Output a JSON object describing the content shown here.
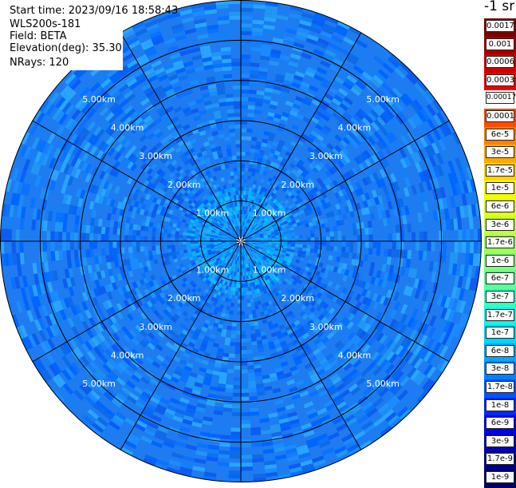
{
  "header": {
    "start_time": "Start time: 2023/09/16 18:58:43",
    "instrument": "WLS200s-181",
    "field": "Field: BETA",
    "elevation": "Elevation(deg): 35.30",
    "nrays": "NRays: 120"
  },
  "colorbar": {
    "unit": "-1 sr",
    "bands": [
      {
        "label": "0.0017",
        "color": "#7a0000"
      },
      {
        "label": "0.001",
        "color": "#a30000"
      },
      {
        "label": "0.0006",
        "color": "#cc0000"
      },
      {
        "label": "0.0003",
        "color": "#f00000"
      },
      {
        "label": "0.00017",
        "color": "#ffffff"
      },
      {
        "label": "0.0001",
        "color": "#ff4a00"
      },
      {
        "label": "6e-5",
        "color": "#ff8000"
      },
      {
        "label": "3e-5",
        "color": "#ffaa00"
      },
      {
        "label": "1.7e-5",
        "color": "#ffd400"
      },
      {
        "label": "1e-5",
        "color": "#f4ff00"
      },
      {
        "label": "6e-6",
        "color": "#dcff20"
      },
      {
        "label": "3e-6",
        "color": "#bfff40"
      },
      {
        "label": "1.7e-6",
        "color": "#9dff5a"
      },
      {
        "label": "1e-6",
        "color": "#7dff7a"
      },
      {
        "label": "6e-7",
        "color": "#5aff9d"
      },
      {
        "label": "3e-7",
        "color": "#30ffc6"
      },
      {
        "label": "1.7e-7",
        "color": "#10f4ea"
      },
      {
        "label": "1e-7",
        "color": "#00d4ff"
      },
      {
        "label": "6e-8",
        "color": "#00a8ff"
      },
      {
        "label": "3e-8",
        "color": "#0080ff"
      },
      {
        "label": "1.7e-8",
        "color": "#0055ff"
      },
      {
        "label": "1e-8",
        "color": "#002aff"
      },
      {
        "label": "6e-9",
        "color": "#0000ea"
      },
      {
        "label": "3e-9",
        "color": "#0000b8"
      },
      {
        "label": "1.7e-9",
        "color": "#000088"
      },
      {
        "label": "1e-9",
        "color": "#000066"
      }
    ]
  },
  "chart_data": {
    "type": "heatmap",
    "projection": "polar",
    "field": "BETA",
    "nrays": 120,
    "elevation_deg": 35.3,
    "range_rings_km": [
      1,
      2,
      3,
      4,
      5
    ],
    "ring_labels": [
      "1.00km",
      "2.00km",
      "3.00km",
      "4.00km",
      "5.00km"
    ],
    "max_range_km": 6,
    "spokes": 12,
    "dominant_range_class": [
      "3e-8",
      "1.7e-8",
      "6e-8",
      "1e-7"
    ],
    "colors": {
      "background_field": "#1e7cf0",
      "near_center": "#00c0ff",
      "grid_lines": "#000000"
    }
  }
}
